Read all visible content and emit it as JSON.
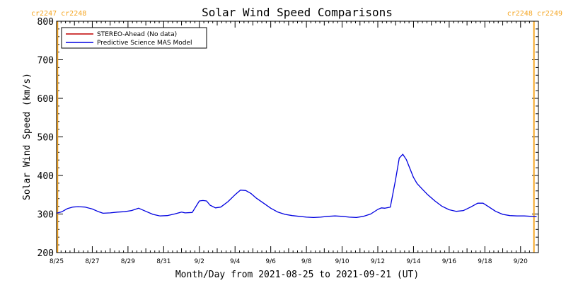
{
  "header": {
    "left_rotation_label": "cr2247 cr2248",
    "right_rotation_label": "cr2248 cr2249"
  },
  "colors": {
    "rotation_marker": "#f5a623",
    "stereo_series": "#c00000",
    "model_series": "#0000e0",
    "axis": "#000000"
  },
  "chart_data": {
    "type": "line",
    "title": "Solar Wind Speed Comparisons",
    "xlabel": "Month/Day from 2021-08-25 to 2021-09-21 (UT)",
    "ylabel": "Solar Wind Speed (km/s)",
    "xlim": [
      0,
      27
    ],
    "ylim": [
      200,
      800
    ],
    "yticks": [
      200,
      300,
      400,
      500,
      600,
      700,
      800
    ],
    "xticks": [
      {
        "day": 0,
        "label": "8/25"
      },
      {
        "day": 2,
        "label": "8/27"
      },
      {
        "day": 4,
        "label": "8/29"
      },
      {
        "day": 6,
        "label": "8/31"
      },
      {
        "day": 8,
        "label": "9/2"
      },
      {
        "day": 10,
        "label": "9/4"
      },
      {
        "day": 12,
        "label": "9/6"
      },
      {
        "day": 14,
        "label": "9/8"
      },
      {
        "day": 16,
        "label": "9/10"
      },
      {
        "day": 18,
        "label": "9/12"
      },
      {
        "day": 20,
        "label": "9/14"
      },
      {
        "day": 22,
        "label": "9/16"
      },
      {
        "day": 24,
        "label": "9/18"
      },
      {
        "day": 26,
        "label": "9/20"
      }
    ],
    "rotation_markers": [
      0.05,
      26.75
    ],
    "legend_position": "top-left",
    "series": [
      {
        "name": "STEREO-Ahead (No data)",
        "color": "#c00000",
        "x": [],
        "y": []
      },
      {
        "name": "Predictive Science MAS Model",
        "color": "#0000e0",
        "x": [
          0,
          0.3,
          0.6,
          0.9,
          1.2,
          1.6,
          2.0,
          2.3,
          2.6,
          3.0,
          3.4,
          3.8,
          4.2,
          4.6,
          5.0,
          5.4,
          5.8,
          6.2,
          6.6,
          7.0,
          7.2,
          7.6,
          8.0,
          8.2,
          8.4,
          8.6,
          8.9,
          9.2,
          9.6,
          10.0,
          10.3,
          10.6,
          10.9,
          11.2,
          11.6,
          12.0,
          12.4,
          12.8,
          13.2,
          13.6,
          14.0,
          14.4,
          14.8,
          15.2,
          15.6,
          16.0,
          16.4,
          16.8,
          17.2,
          17.6,
          18.0,
          18.2,
          18.4,
          18.7,
          19.0,
          19.2,
          19.3,
          19.4,
          19.6,
          19.8,
          20.0,
          20.2,
          20.5,
          20.8,
          21.2,
          21.6,
          22.0,
          22.4,
          22.8,
          23.2,
          23.6,
          23.9,
          24.2,
          24.6,
          25.0,
          25.4,
          25.8,
          26.2,
          26.6,
          26.9
        ],
        "y": [
          302,
          306,
          314,
          318,
          319,
          318,
          313,
          307,
          302,
          303,
          305,
          306,
          309,
          315,
          307,
          299,
          295,
          296,
          300,
          305,
          303,
          304,
          334,
          335,
          334,
          323,
          316,
          318,
          332,
          350,
          362,
          361,
          353,
          341,
          328,
          315,
          305,
          299,
          296,
          294,
          292,
          291,
          292,
          294,
          295,
          294,
          292,
          291,
          294,
          300,
          312,
          316,
          315,
          318,
          390,
          445,
          450,
          455,
          441,
          418,
          395,
          379,
          364,
          350,
          334,
          320,
          311,
          307,
          309,
          318,
          328,
          328,
          319,
          307,
          299,
          296,
          295,
          295,
          294,
          293
        ]
      }
    ]
  }
}
